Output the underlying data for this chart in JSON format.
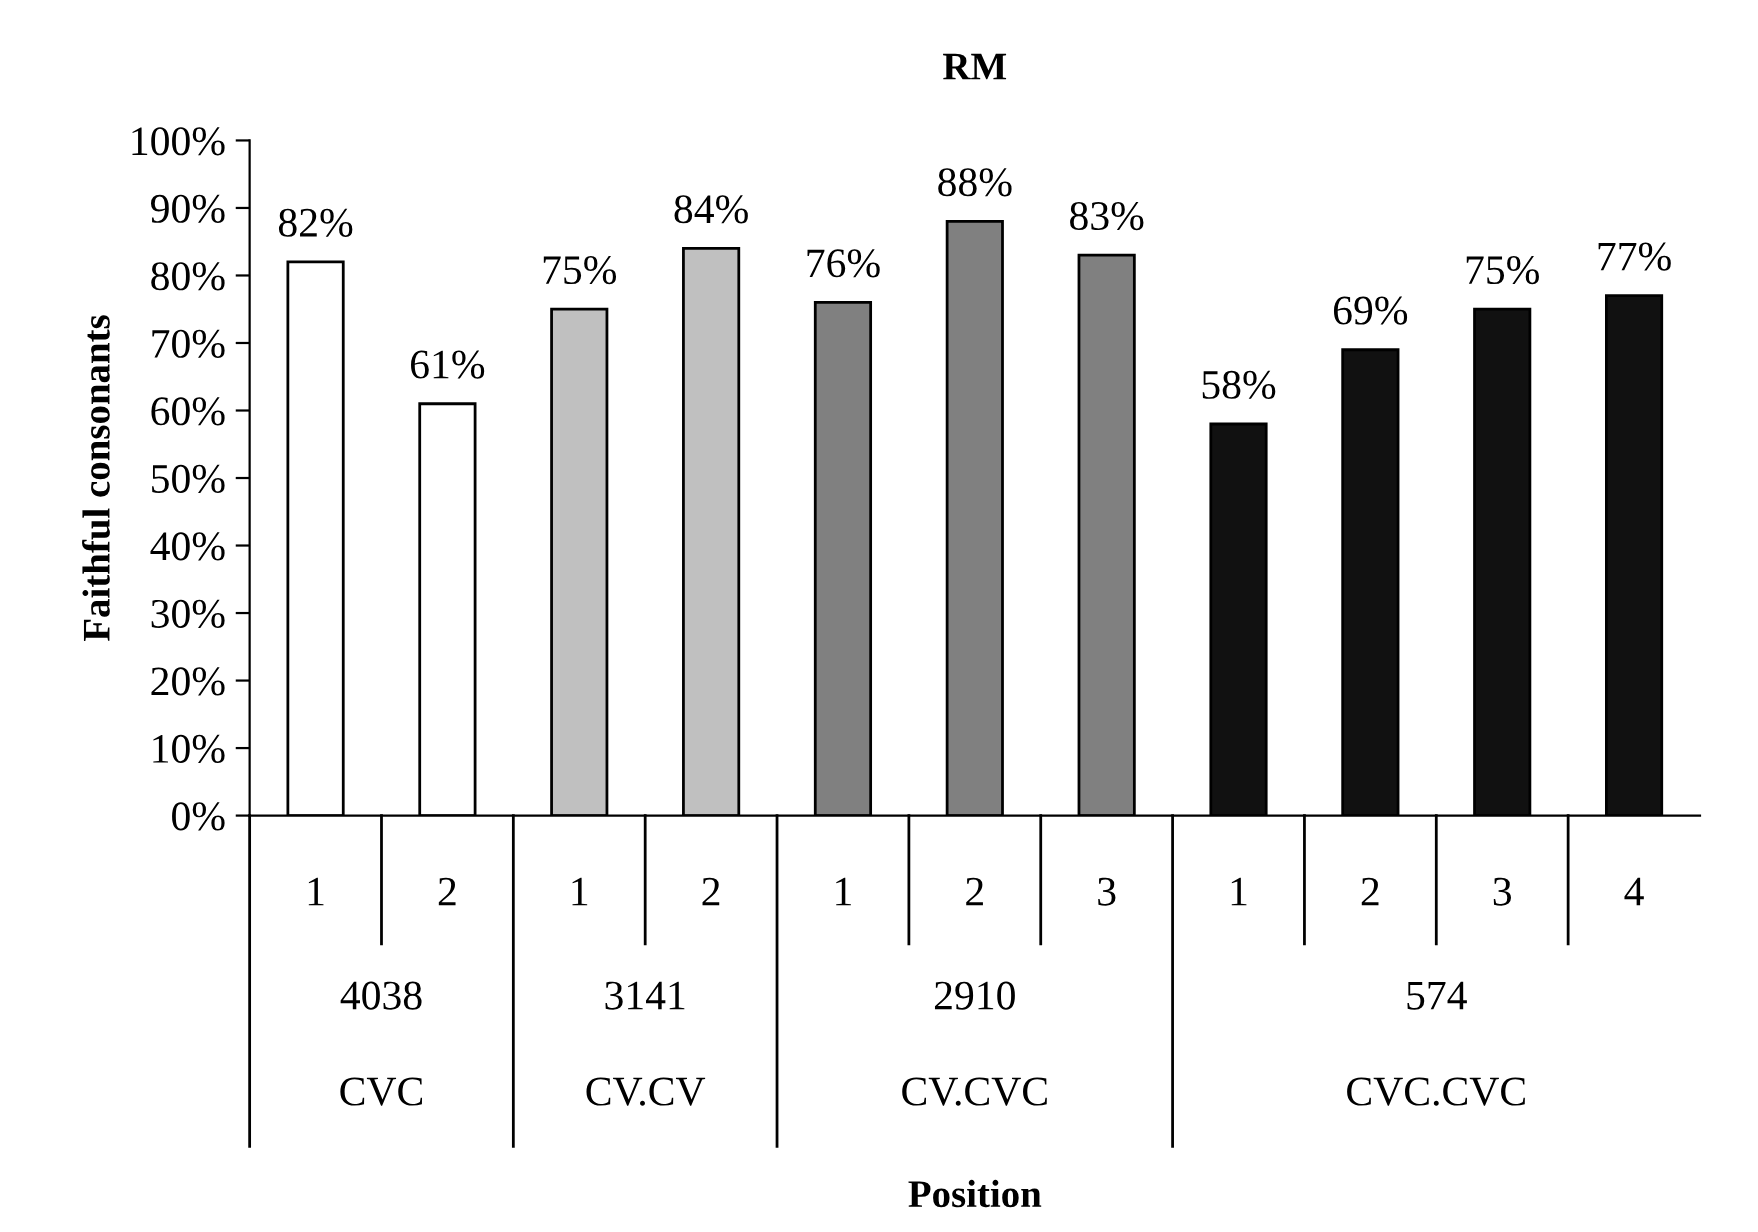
{
  "chart_data": {
    "type": "bar",
    "title": "RM",
    "ylabel": "Faithful consonants",
    "categories": [
      "1",
      "2",
      "1",
      "2",
      "1",
      "2",
      "3",
      "1",
      "2",
      "3",
      "4"
    ],
    "values": [
      82,
      61,
      75,
      84,
      76,
      88,
      83,
      58,
      69,
      75,
      77
    ],
    "value_labels": [
      "82%",
      "61%",
      "75%",
      "84%",
      "76%",
      "88%",
      "83%",
      "58%",
      "69%",
      "75%",
      "77%"
    ],
    "colors": [
      "#ffffff",
      "#ffffff",
      "#c0c0c0",
      "#c0c0c0",
      "#808080",
      "#808080",
      "#808080",
      "#111111",
      "#111111",
      "#111111",
      "#111111"
    ],
    "annotations": [
      "4038",
      "3141",
      "2910",
      "574",
      "CVC",
      "CV.CV",
      "CV.CVC",
      "CVC.CVC",
      "Position"
    ],
    "ylim": [
      0,
      100
    ],
    "yticks": [
      {
        "value": 0,
        "label": "0%"
      },
      {
        "value": 10,
        "label": "10%"
      },
      {
        "value": 20,
        "label": "20%"
      },
      {
        "value": 30,
        "label": "30%"
      },
      {
        "value": 40,
        "label": "40%"
      },
      {
        "value": 50,
        "label": "50%"
      },
      {
        "value": 60,
        "label": "60%"
      },
      {
        "value": 70,
        "label": "70%"
      },
      {
        "value": 80,
        "label": "80%"
      },
      {
        "value": 90,
        "label": "90%"
      },
      {
        "value": 100,
        "label": "100%"
      }
    ],
    "grid": false
  }
}
